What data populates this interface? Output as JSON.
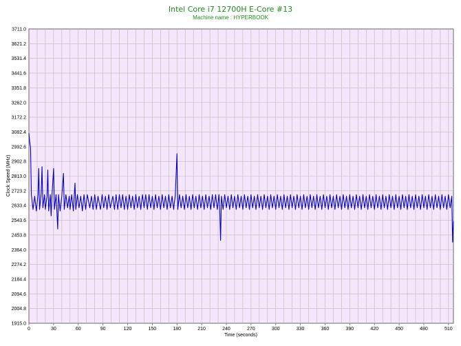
{
  "chart_data": {
    "type": "line",
    "title": "Intel Core i7 12700H E-Core #13",
    "subtitle": "Machine name : HYPERBOOK",
    "xlabel": "Time (seconds)",
    "ylabel": "Clock Speed (MHz)",
    "xlim": [
      0,
      516
    ],
    "ylim": [
      1915.0,
      3711.0
    ],
    "x_ticks": [
      0,
      30,
      60,
      90,
      120,
      150,
      180,
      210,
      240,
      270,
      300,
      330,
      360,
      390,
      420,
      450,
      480,
      510
    ],
    "y_ticks": [
      "1915.0",
      "2004.8",
      "2094.6",
      "2184.4",
      "2274.2",
      "2364.0",
      "2453.8",
      "2543.6",
      "2633.4",
      "2723.2",
      "2813.0",
      "2902.8",
      "2992.6",
      "3082.4",
      "3172.2",
      "3262.0",
      "3351.8",
      "3441.6",
      "3531.4",
      "3621.2",
      "3711.0"
    ],
    "grid": true,
    "background": "#f6e6fb",
    "grid_color": "#b9b9b9",
    "line_color": "#0000cc",
    "series": [
      {
        "values": [
          [
            0,
            3075
          ],
          [
            1,
            3020
          ],
          [
            2,
            2985
          ],
          [
            3,
            2700
          ],
          [
            5,
            2610
          ],
          [
            7,
            2690
          ],
          [
            9,
            2600
          ],
          [
            11,
            2700
          ],
          [
            12,
            2860
          ],
          [
            13,
            2610
          ],
          [
            15,
            2710
          ],
          [
            16,
            2870
          ],
          [
            17,
            2620
          ],
          [
            19,
            2700
          ],
          [
            20,
            2610
          ],
          [
            22,
            2690
          ],
          [
            23,
            2850
          ],
          [
            24,
            2600
          ],
          [
            26,
            2700
          ],
          [
            27,
            2570
          ],
          [
            28,
            2690
          ],
          [
            30,
            2860
          ],
          [
            31,
            2610
          ],
          [
            33,
            2700
          ],
          [
            35,
            2490
          ],
          [
            36,
            2700
          ],
          [
            38,
            2600
          ],
          [
            40,
            2690
          ],
          [
            42,
            2830
          ],
          [
            43,
            2610
          ],
          [
            45,
            2700
          ],
          [
            47,
            2620
          ],
          [
            49,
            2690
          ],
          [
            50,
            2610
          ],
          [
            52,
            2700
          ],
          [
            54,
            2600
          ],
          [
            56,
            2770
          ],
          [
            57,
            2610
          ],
          [
            59,
            2700
          ],
          [
            61,
            2620
          ],
          [
            63,
            2690
          ],
          [
            65,
            2600
          ],
          [
            67,
            2700
          ],
          [
            69,
            2610
          ],
          [
            71,
            2700
          ],
          [
            74,
            2620
          ],
          [
            76,
            2690
          ],
          [
            78,
            2610
          ],
          [
            80,
            2700
          ],
          [
            82,
            2610
          ],
          [
            84,
            2690
          ],
          [
            87,
            2610
          ],
          [
            89,
            2700
          ],
          [
            91,
            2620
          ],
          [
            93,
            2690
          ],
          [
            95,
            2610
          ],
          [
            97,
            2700
          ],
          [
            99,
            2620
          ],
          [
            102,
            2690
          ],
          [
            104,
            2610
          ],
          [
            106,
            2700
          ],
          [
            108,
            2610
          ],
          [
            110,
            2700
          ],
          [
            112,
            2620
          ],
          [
            114,
            2700
          ],
          [
            116,
            2610
          ],
          [
            118,
            2690
          ],
          [
            120,
            2610
          ],
          [
            122,
            2700
          ],
          [
            124,
            2620
          ],
          [
            126,
            2690
          ],
          [
            128,
            2610
          ],
          [
            130,
            2700
          ],
          [
            132,
            2620
          ],
          [
            134,
            2690
          ],
          [
            136,
            2610
          ],
          [
            138,
            2700
          ],
          [
            140,
            2620
          ],
          [
            142,
            2700
          ],
          [
            144,
            2610
          ],
          [
            146,
            2700
          ],
          [
            148,
            2620
          ],
          [
            150,
            2690
          ],
          [
            152,
            2610
          ],
          [
            154,
            2700
          ],
          [
            156,
            2620
          ],
          [
            158,
            2690
          ],
          [
            160,
            2610
          ],
          [
            162,
            2700
          ],
          [
            164,
            2620
          ],
          [
            166,
            2690
          ],
          [
            168,
            2610
          ],
          [
            170,
            2700
          ],
          [
            172,
            2620
          ],
          [
            174,
            2690
          ],
          [
            176,
            2610
          ],
          [
            178,
            2700
          ],
          [
            180,
            2950
          ],
          [
            181,
            2610
          ],
          [
            183,
            2700
          ],
          [
            185,
            2620
          ],
          [
            187,
            2690
          ],
          [
            189,
            2610
          ],
          [
            191,
            2700
          ],
          [
            193,
            2620
          ],
          [
            195,
            2690
          ],
          [
            197,
            2610
          ],
          [
            199,
            2700
          ],
          [
            201,
            2620
          ],
          [
            203,
            2690
          ],
          [
            205,
            2610
          ],
          [
            207,
            2700
          ],
          [
            209,
            2620
          ],
          [
            211,
            2690
          ],
          [
            213,
            2610
          ],
          [
            215,
            2700
          ],
          [
            217,
            2620
          ],
          [
            219,
            2690
          ],
          [
            221,
            2610
          ],
          [
            223,
            2700
          ],
          [
            225,
            2620
          ],
          [
            227,
            2700
          ],
          [
            229,
            2610
          ],
          [
            231,
            2700
          ],
          [
            232,
            2600
          ],
          [
            233,
            2420
          ],
          [
            234,
            2690
          ],
          [
            236,
            2610
          ],
          [
            238,
            2700
          ],
          [
            240,
            2620
          ],
          [
            242,
            2690
          ],
          [
            244,
            2610
          ],
          [
            246,
            2700
          ],
          [
            248,
            2620
          ],
          [
            250,
            2690
          ],
          [
            252,
            2610
          ],
          [
            254,
            2700
          ],
          [
            256,
            2620
          ],
          [
            258,
            2690
          ],
          [
            260,
            2610
          ],
          [
            262,
            2700
          ],
          [
            264,
            2620
          ],
          [
            266,
            2690
          ],
          [
            268,
            2610
          ],
          [
            270,
            2700
          ],
          [
            272,
            2620
          ],
          [
            274,
            2690
          ],
          [
            276,
            2610
          ],
          [
            278,
            2700
          ],
          [
            280,
            2620
          ],
          [
            282,
            2690
          ],
          [
            284,
            2610
          ],
          [
            286,
            2700
          ],
          [
            288,
            2620
          ],
          [
            290,
            2690
          ],
          [
            292,
            2610
          ],
          [
            294,
            2700
          ],
          [
            296,
            2620
          ],
          [
            298,
            2690
          ],
          [
            300,
            2610
          ],
          [
            302,
            2700
          ],
          [
            304,
            2620
          ],
          [
            306,
            2690
          ],
          [
            308,
            2610
          ],
          [
            310,
            2700
          ],
          [
            312,
            2620
          ],
          [
            314,
            2690
          ],
          [
            316,
            2610
          ],
          [
            318,
            2700
          ],
          [
            320,
            2620
          ],
          [
            322,
            2690
          ],
          [
            324,
            2610
          ],
          [
            326,
            2700
          ],
          [
            328,
            2620
          ],
          [
            330,
            2690
          ],
          [
            332,
            2610
          ],
          [
            334,
            2700
          ],
          [
            336,
            2620
          ],
          [
            338,
            2690
          ],
          [
            340,
            2610
          ],
          [
            342,
            2700
          ],
          [
            344,
            2620
          ],
          [
            346,
            2690
          ],
          [
            348,
            2610
          ],
          [
            350,
            2700
          ],
          [
            352,
            2620
          ],
          [
            354,
            2690
          ],
          [
            356,
            2610
          ],
          [
            358,
            2700
          ],
          [
            360,
            2620
          ],
          [
            362,
            2690
          ],
          [
            364,
            2610
          ],
          [
            366,
            2700
          ],
          [
            368,
            2620
          ],
          [
            370,
            2690
          ],
          [
            372,
            2610
          ],
          [
            374,
            2700
          ],
          [
            376,
            2620
          ],
          [
            378,
            2690
          ],
          [
            380,
            2610
          ],
          [
            382,
            2700
          ],
          [
            384,
            2620
          ],
          [
            386,
            2690
          ],
          [
            388,
            2610
          ],
          [
            390,
            2700
          ],
          [
            392,
            2620
          ],
          [
            394,
            2690
          ],
          [
            396,
            2610
          ],
          [
            398,
            2700
          ],
          [
            400,
            2620
          ],
          [
            402,
            2690
          ],
          [
            404,
            2610
          ],
          [
            406,
            2700
          ],
          [
            408,
            2620
          ],
          [
            410,
            2690
          ],
          [
            412,
            2610
          ],
          [
            414,
            2700
          ],
          [
            416,
            2620
          ],
          [
            418,
            2690
          ],
          [
            420,
            2610
          ],
          [
            422,
            2700
          ],
          [
            424,
            2620
          ],
          [
            426,
            2690
          ],
          [
            428,
            2610
          ],
          [
            430,
            2700
          ],
          [
            432,
            2620
          ],
          [
            434,
            2690
          ],
          [
            436,
            2610
          ],
          [
            438,
            2700
          ],
          [
            440,
            2620
          ],
          [
            442,
            2690
          ],
          [
            444,
            2610
          ],
          [
            446,
            2700
          ],
          [
            448,
            2620
          ],
          [
            450,
            2690
          ],
          [
            452,
            2610
          ],
          [
            454,
            2700
          ],
          [
            456,
            2620
          ],
          [
            458,
            2690
          ],
          [
            460,
            2610
          ],
          [
            462,
            2700
          ],
          [
            464,
            2620
          ],
          [
            466,
            2690
          ],
          [
            468,
            2610
          ],
          [
            470,
            2700
          ],
          [
            472,
            2620
          ],
          [
            474,
            2690
          ],
          [
            476,
            2610
          ],
          [
            478,
            2700
          ],
          [
            480,
            2620
          ],
          [
            482,
            2690
          ],
          [
            484,
            2610
          ],
          [
            486,
            2700
          ],
          [
            488,
            2620
          ],
          [
            490,
            2690
          ],
          [
            492,
            2610
          ],
          [
            494,
            2700
          ],
          [
            496,
            2620
          ],
          [
            498,
            2690
          ],
          [
            500,
            2610
          ],
          [
            502,
            2700
          ],
          [
            504,
            2620
          ],
          [
            506,
            2690
          ],
          [
            508,
            2610
          ],
          [
            510,
            2700
          ],
          [
            512,
            2620
          ],
          [
            514,
            2690
          ],
          [
            515,
            2410
          ],
          [
            516,
            2540
          ]
        ]
      }
    ]
  }
}
